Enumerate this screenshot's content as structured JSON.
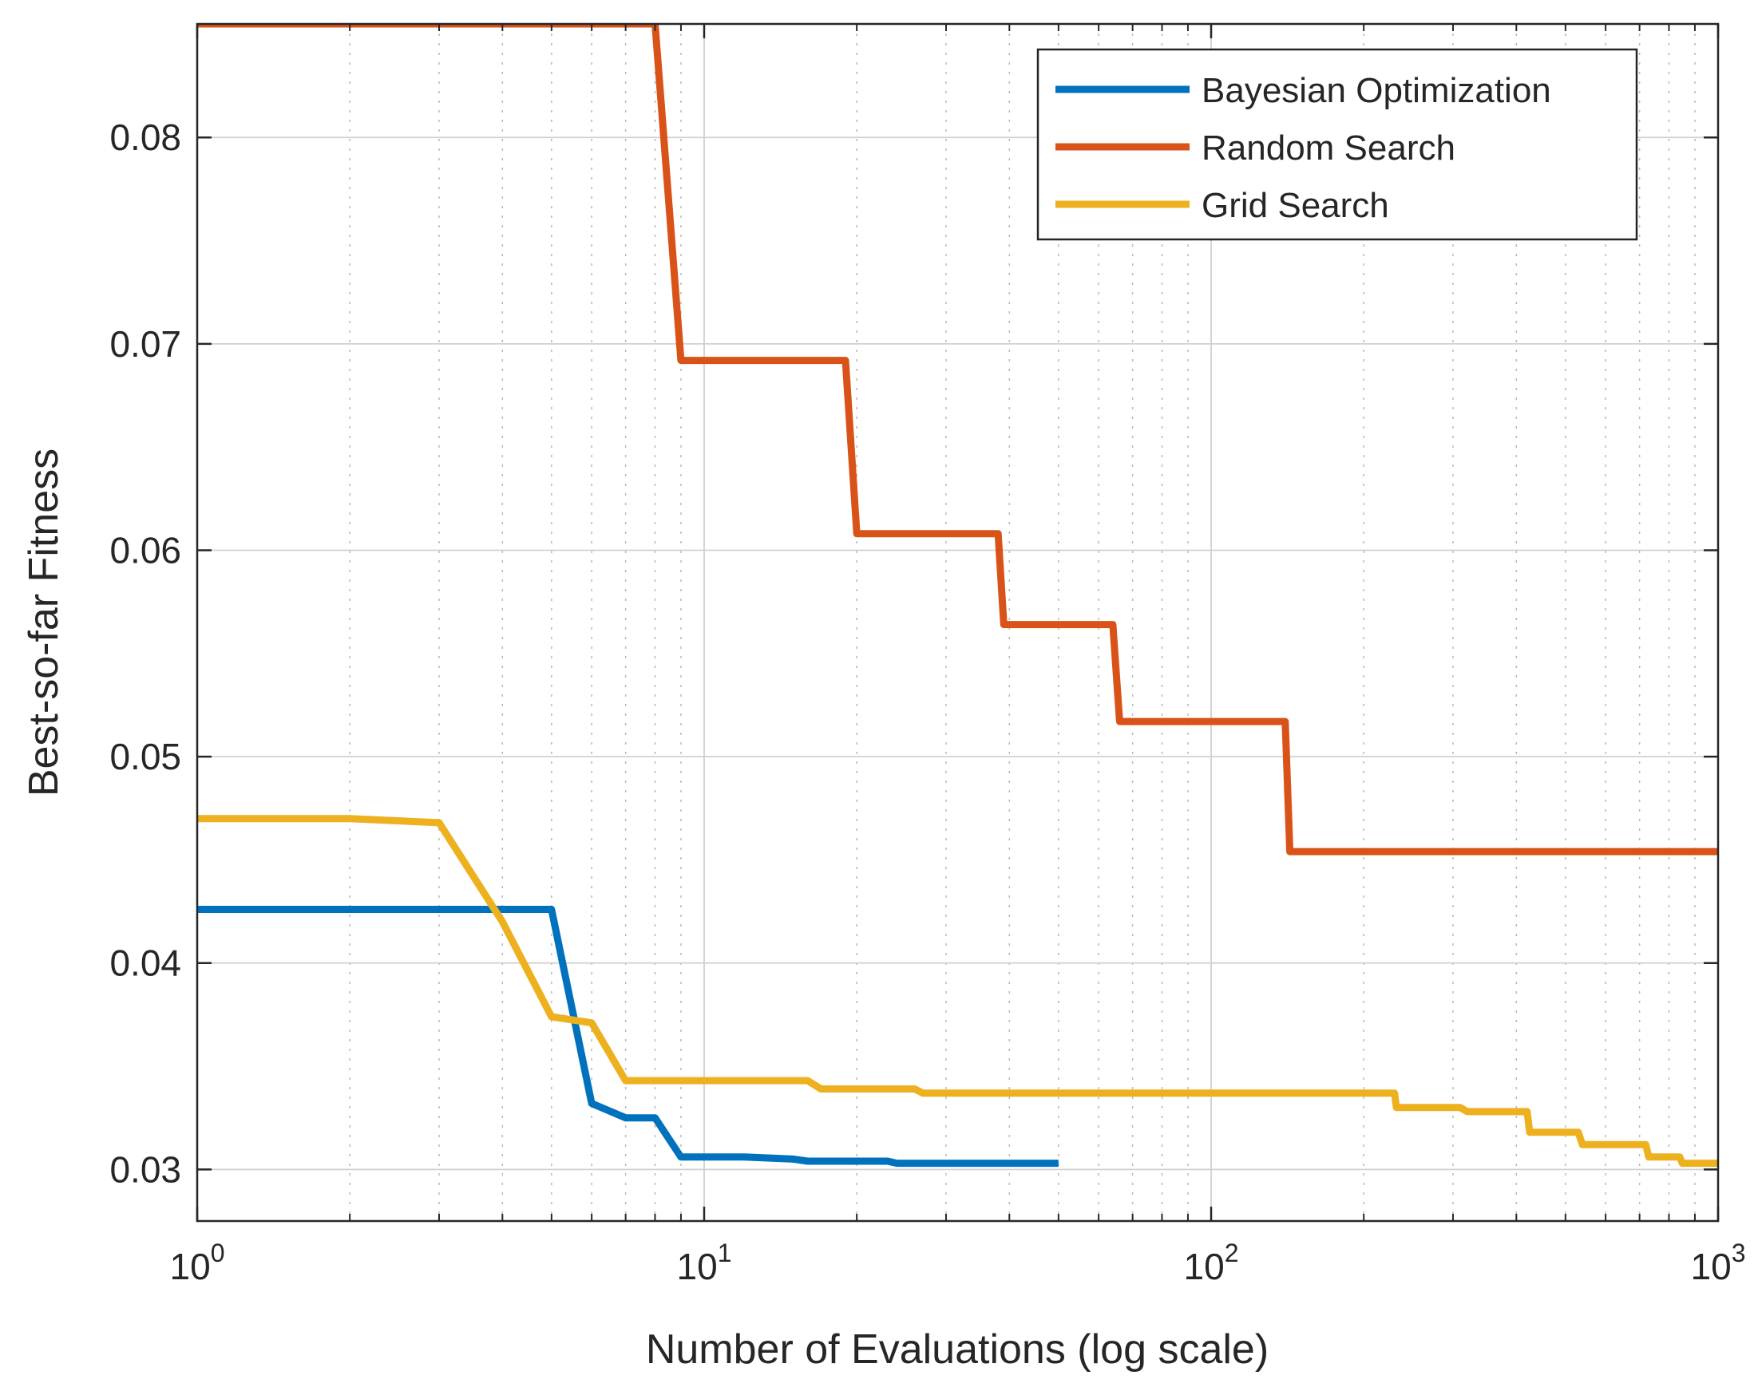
{
  "chart_data": {
    "type": "line",
    "xlabel": "Number of Evaluations (log scale)",
    "ylabel": "Best-so-far Fitness",
    "xscale": "log",
    "xlim": [
      1,
      1000
    ],
    "ylim": [
      0.0275,
      0.0855
    ],
    "grid": true,
    "minor_grid": true,
    "legend_position": "top-right",
    "x_ticks": [
      {
        "value": 1,
        "base": "10",
        "exp": "0"
      },
      {
        "value": 10,
        "base": "10",
        "exp": "1"
      },
      {
        "value": 100,
        "base": "10",
        "exp": "2"
      },
      {
        "value": 1000,
        "base": "10",
        "exp": "3"
      }
    ],
    "y_ticks": [
      {
        "value": 0.03,
        "label": "0.03"
      },
      {
        "value": 0.04,
        "label": "0.04"
      },
      {
        "value": 0.05,
        "label": "0.05"
      },
      {
        "value": 0.06,
        "label": "0.06"
      },
      {
        "value": 0.07,
        "label": "0.07"
      },
      {
        "value": 0.08,
        "label": "0.08"
      }
    ],
    "series": [
      {
        "name": "Bayesian Optimization",
        "color": "#0072BD",
        "points": [
          [
            1,
            0.0426
          ],
          [
            5,
            0.0426
          ],
          [
            6,
            0.0332
          ],
          [
            7,
            0.0325
          ],
          [
            8,
            0.0325
          ],
          [
            9,
            0.0306
          ],
          [
            12,
            0.0306
          ],
          [
            15,
            0.0305
          ],
          [
            16,
            0.0304
          ],
          [
            23,
            0.0304
          ],
          [
            24,
            0.0303
          ],
          [
            50,
            0.0303
          ]
        ]
      },
      {
        "name": "Random Search",
        "color": "#D95319",
        "points": [
          [
            1,
            0.0855
          ],
          [
            8,
            0.0855
          ],
          [
            9,
            0.0692
          ],
          [
            19,
            0.0692
          ],
          [
            20,
            0.0608
          ],
          [
            38,
            0.0608
          ],
          [
            39,
            0.0564
          ],
          [
            64,
            0.0564
          ],
          [
            66,
            0.0517
          ],
          [
            140,
            0.0517
          ],
          [
            143,
            0.0454
          ],
          [
            1000,
            0.0454
          ]
        ]
      },
      {
        "name": "Grid Search",
        "color": "#EDB120",
        "points": [
          [
            1,
            0.047
          ],
          [
            2,
            0.047
          ],
          [
            3,
            0.0468
          ],
          [
            4,
            0.042
          ],
          [
            5,
            0.0374
          ],
          [
            6,
            0.0371
          ],
          [
            7,
            0.0343
          ],
          [
            16,
            0.0343
          ],
          [
            17,
            0.0339
          ],
          [
            26,
            0.0339
          ],
          [
            27,
            0.0337
          ],
          [
            230,
            0.0337
          ],
          [
            232,
            0.033
          ],
          [
            310,
            0.033
          ],
          [
            320,
            0.0328
          ],
          [
            420,
            0.0328
          ],
          [
            425,
            0.0318
          ],
          [
            530,
            0.0318
          ],
          [
            540,
            0.0312
          ],
          [
            720,
            0.0312
          ],
          [
            730,
            0.0306
          ],
          [
            840,
            0.0306
          ],
          [
            850,
            0.0303
          ],
          [
            1000,
            0.0303
          ]
        ]
      }
    ]
  }
}
